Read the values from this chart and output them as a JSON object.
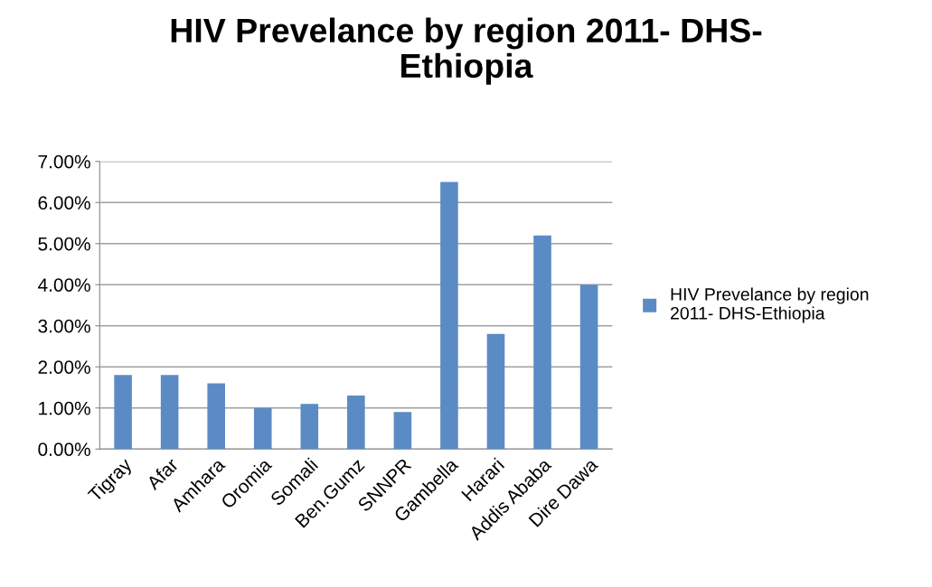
{
  "chart_data": {
    "type": "bar",
    "title": "HIV Prevelance by region 2011- DHS-\nEthiopia",
    "categories": [
      "Tigray",
      "Afar",
      "Amhara",
      "Oromia",
      "Somali",
      "Ben.Gumz",
      "SNNPR",
      "Gambella",
      "Harari",
      "Addis Ababa",
      "Dire Dawa"
    ],
    "series": [
      {
        "name": "HIV Prevelance by region\n2011- DHS-Ethiopia",
        "color": "#5b8bc5",
        "values": [
          1.8,
          1.8,
          1.6,
          1.0,
          1.1,
          1.3,
          0.9,
          6.5,
          2.8,
          5.2,
          4.0
        ]
      }
    ],
    "ylim": [
      0,
      7
    ],
    "yticks": [
      {
        "value": 0,
        "label": "0.00%"
      },
      {
        "value": 1,
        "label": "1.00%"
      },
      {
        "value": 2,
        "label": "2.00%"
      },
      {
        "value": 3,
        "label": "3.00%"
      },
      {
        "value": 4,
        "label": "4.00%"
      },
      {
        "value": 5,
        "label": "5.00%"
      },
      {
        "value": 6,
        "label": "6.00%"
      },
      {
        "value": 7,
        "label": "7.00%"
      }
    ],
    "grid": "y",
    "legend": "right"
  }
}
